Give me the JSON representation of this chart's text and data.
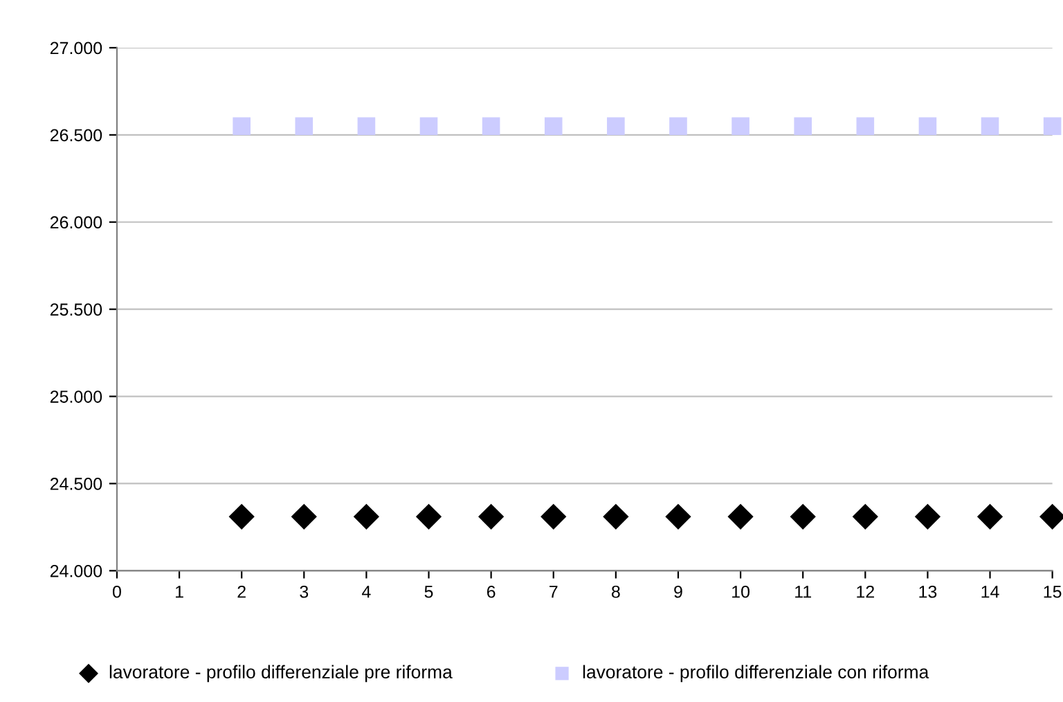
{
  "chart_data": {
    "type": "scatter",
    "x": [
      2,
      3,
      4,
      5,
      6,
      7,
      8,
      9,
      10,
      11,
      12,
      13,
      14,
      15
    ],
    "series": [
      {
        "name": "lavoratore - profilo differenziale pre riforma",
        "color": "#000000",
        "marker": "diamond",
        "values": [
          24310,
          24310,
          24310,
          24310,
          24310,
          24310,
          24310,
          24310,
          24310,
          24310,
          24310,
          24310,
          24310,
          24310
        ]
      },
      {
        "name": "lavoratore - profilo differenziale con riforma",
        "color": "#ccccff",
        "marker": "square",
        "values": [
          26550,
          26550,
          26550,
          26550,
          26550,
          26550,
          26550,
          26550,
          26550,
          26550,
          26550,
          26550,
          26550,
          26550
        ]
      }
    ],
    "xlim": [
      0,
      15
    ],
    "xticks": [
      0,
      1,
      2,
      3,
      4,
      5,
      6,
      7,
      8,
      9,
      10,
      11,
      12,
      13,
      14,
      15
    ],
    "ylim": [
      24000,
      27000
    ],
    "yticks": [
      {
        "value": 24000,
        "label": "24.000"
      },
      {
        "value": 24500,
        "label": "24.500"
      },
      {
        "value": 25000,
        "label": "25.000"
      },
      {
        "value": 25500,
        "label": "25.500"
      },
      {
        "value": 26000,
        "label": "26.000"
      },
      {
        "value": 26500,
        "label": "26.500"
      },
      {
        "value": 27000,
        "label": "27.000"
      }
    ],
    "grid": "y",
    "legend": "bottom"
  }
}
